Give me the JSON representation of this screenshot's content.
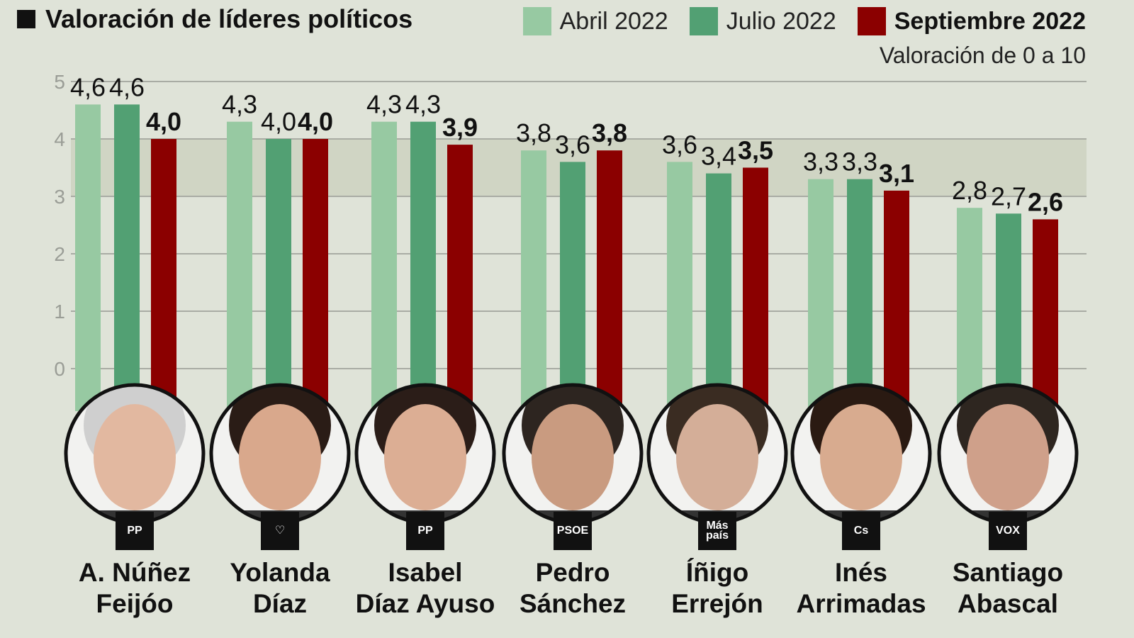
{
  "title": "Valoración de líderes políticos",
  "subtitle": "Valoración de 0 a 10",
  "legend": [
    {
      "label": "Abril 2022",
      "color": "#97c9a2"
    },
    {
      "label": "Julio 2022",
      "color": "#52a073"
    },
    {
      "label": "Septiembre 2022",
      "color": "#8b0000"
    }
  ],
  "chart_data": {
    "type": "bar",
    "title": "Valoración de líderes políticos",
    "subtitle": "Valoración de 0 a 10",
    "ylim": [
      0,
      5
    ],
    "yticks": [
      0,
      1,
      2,
      3,
      4,
      5
    ],
    "grid": true,
    "legend_position": "top-right",
    "categories": [
      "A. Núñez Feijóo",
      "Yolanda Díaz",
      "Isabel Díaz Ayuso",
      "Pedro Sánchez",
      "Íñigo Errejón",
      "Inés Arrimadas",
      "Santiago Abascal"
    ],
    "series": [
      {
        "name": "Abril 2022",
        "color": "#97c9a2",
        "values": [
          4.6,
          4.3,
          4.3,
          3.8,
          3.6,
          3.3,
          2.8
        ],
        "labels": [
          "4,6",
          "4,3",
          "4,3",
          "3,8",
          "3,6",
          "3,3",
          "2,8"
        ]
      },
      {
        "name": "Julio 2022",
        "color": "#52a073",
        "values": [
          4.6,
          4.0,
          4.3,
          3.6,
          3.4,
          3.3,
          2.7
        ],
        "labels": [
          "4,6",
          "4,0",
          "4,3",
          "3,6",
          "3,4",
          "3,3",
          "2,7"
        ]
      },
      {
        "name": "Septiembre 2022",
        "color": "#8b0000",
        "values": [
          4.0,
          4.0,
          3.9,
          3.8,
          3.5,
          3.1,
          2.6
        ],
        "labels": [
          "4,0",
          "4,0",
          "3,9",
          "3,8",
          "3,5",
          "3,1",
          "2,6"
        ]
      }
    ]
  },
  "leaders": [
    {
      "line1": "A. Núñez",
      "line2": "Feijóo",
      "party": "PP"
    },
    {
      "line1": "Yolanda",
      "line2": "Díaz",
      "party": "♡"
    },
    {
      "line1": "Isabel",
      "line2": "Díaz Ayuso",
      "party": "PP"
    },
    {
      "line1": "Pedro",
      "line2": "Sánchez",
      "party": "PSOE"
    },
    {
      "line1": "Íñigo",
      "line2": "Errejón",
      "party": "Más país"
    },
    {
      "line1": "Inés",
      "line2": "Arrimadas",
      "party": "Cs"
    },
    {
      "line1": "Santiago",
      "line2": "Abascal",
      "party": "VOX"
    }
  ]
}
